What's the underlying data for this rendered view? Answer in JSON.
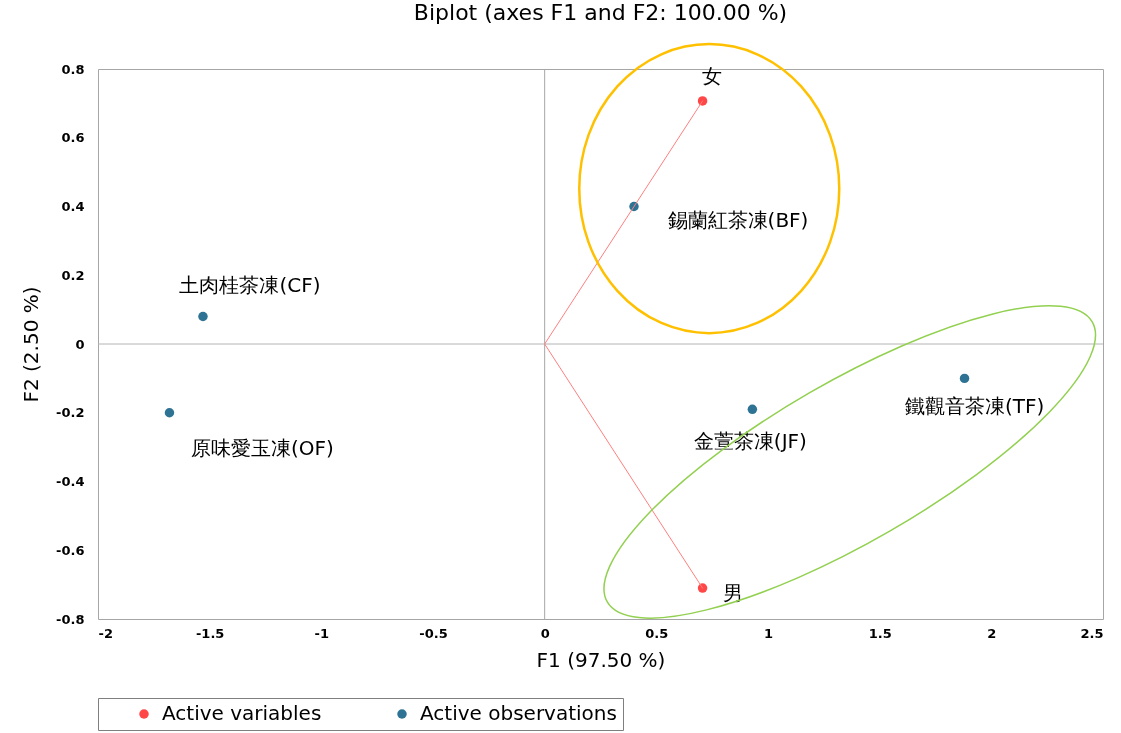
{
  "chart_data": {
    "type": "scatter",
    "title": "Biplot (axes F1 and F2: 100.00 %)",
    "xlabel": "F1 (97.50 %)",
    "ylabel": "F2 (2.50 %)",
    "xlim": [
      -2,
      2.5
    ],
    "xticks": [
      -2,
      -1.5,
      -1,
      -0.5,
      0,
      0.5,
      1,
      1.5,
      2,
      2.5
    ],
    "ylim": [
      -0.8,
      0.8
    ],
    "yticks": [
      -0.8,
      -0.6,
      -0.4,
      -0.2,
      0,
      0.2,
      0.4,
      0.6,
      0.8
    ],
    "grid": false,
    "legend": "bottom",
    "marker": "circle",
    "series": [
      {
        "type": "line",
        "marker": "none",
        "color": "#ff7f7f",
        "x": [
          0.707,
          0,
          0.707
        ],
        "values": [
          0.707,
          0,
          -0.71
        ]
      },
      {
        "name": "Active variables",
        "color": "#ff4747",
        "x": [
          0.707,
          0.707
        ],
        "values": [
          0.707,
          -0.71
        ]
      },
      {
        "name": "Active observations",
        "color": "#2e7394",
        "x": [
          0.4,
          -1.53,
          -1.68,
          0.93,
          1.88
        ],
        "values": [
          0.4,
          0.08,
          -0.2,
          -0.19,
          -0.1
        ]
      }
    ],
    "ref_lines": [
      {
        "axis": "x",
        "value": 0,
        "color": "#a6a6a6"
      },
      {
        "axis": "y",
        "value": 0,
        "color": "#b4b4b4"
      }
    ],
    "annotations": [
      {
        "text": "女",
        "x": 0.707,
        "y": 0.707
      },
      {
        "text": "男",
        "x": 0.707,
        "y": -0.71
      },
      {
        "text": "錫蘭紅茶凍(BF)",
        "x": 0.4,
        "y": 0.4
      },
      {
        "text": "土肉桂茶凍(CF)",
        "x": -1.53,
        "y": 0.08
      },
      {
        "text": "原味愛玉凍(OF)",
        "x": -1.68,
        "y": -0.2
      },
      {
        "text": "金萱茶凍(JF)",
        "x": 0.93,
        "y": -0.19
      },
      {
        "text": "鐵觀音茶凍(TF)",
        "x": 1.88,
        "y": -0.1
      }
    ]
  }
}
